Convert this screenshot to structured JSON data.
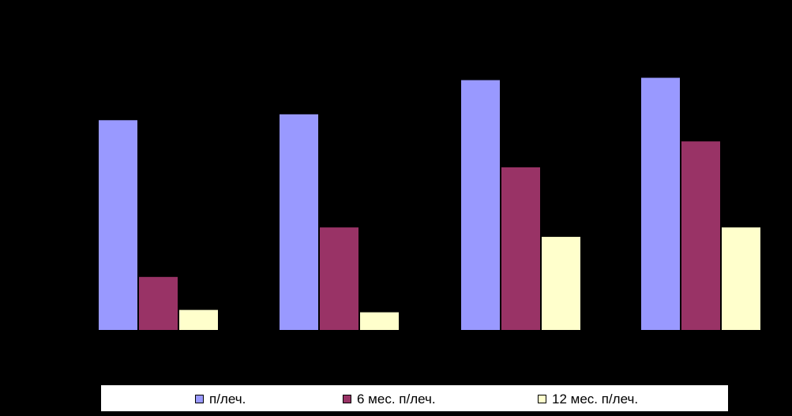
{
  "chart_data": {
    "type": "bar",
    "categories": [
      "",
      "",
      "",
      ""
    ],
    "series": [
      {
        "name": "п/леч.",
        "color": "#9999FF",
        "values": [
          89,
          91.5,
          106,
          107
        ]
      },
      {
        "name": "6 мес. п/леч.",
        "color": "#993366",
        "values": [
          22.5,
          43.5,
          69,
          80
        ]
      },
      {
        "name": "12 мес. п/леч.",
        "color": "#FFFFCC",
        "values": [
          8.5,
          7.5,
          39.5,
          43.5
        ]
      }
    ],
    "title": "",
    "xlabel": "",
    "ylabel": "",
    "ylim": [
      0,
      140
    ],
    "grid": false,
    "legend_position": "bottom"
  }
}
